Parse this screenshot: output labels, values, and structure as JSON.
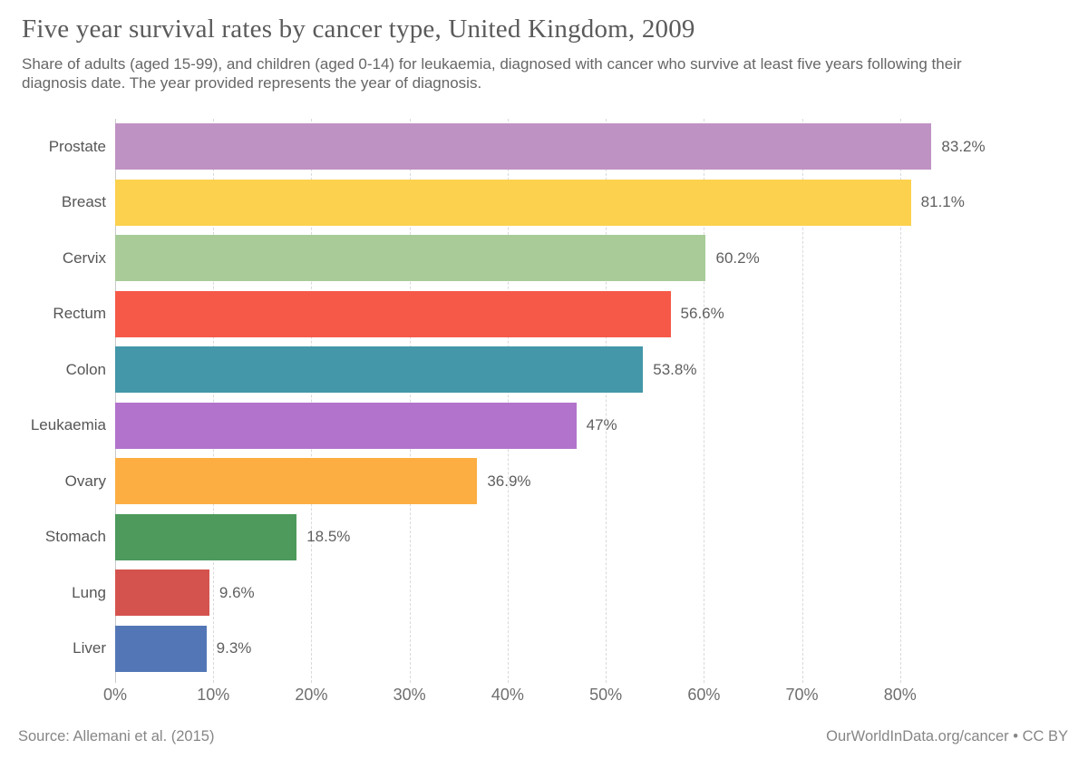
{
  "header": {
    "title": "Five year survival rates by cancer type, United Kingdom, 2009",
    "subtitle": "Share of adults (aged 15-99), and children (aged 0-14) for leukaemia, diagnosed with cancer who survive at least five years following their diagnosis date. The year provided represents the year of diagnosis."
  },
  "chart_data": {
    "type": "bar",
    "orientation": "horizontal",
    "title": "Five year survival rates by cancer type, United Kingdom, 2009",
    "categories": [
      "Prostate",
      "Breast",
      "Cervix",
      "Rectum",
      "Colon",
      "Leukaemia",
      "Ovary",
      "Stomach",
      "Lung",
      "Liver"
    ],
    "values": [
      83.2,
      81.1,
      60.2,
      56.6,
      53.8,
      47,
      36.9,
      18.5,
      9.6,
      9.3
    ],
    "value_labels": [
      "83.2%",
      "81.1%",
      "60.2%",
      "56.6%",
      "53.8%",
      "47%",
      "36.9%",
      "18.5%",
      "9.6%",
      "9.3%"
    ],
    "bar_colors": [
      "#bf92c4",
      "#fcd14e",
      "#a8cb98",
      "#f65948",
      "#4397a9",
      "#b273cc",
      "#fcae43",
      "#4d9a5c",
      "#d5534e",
      "#5377b6"
    ],
    "x_ticks": [
      "0%",
      "10%",
      "20%",
      "30%",
      "40%",
      "50%",
      "60%",
      "70%",
      "80%"
    ],
    "x_tick_values": [
      0,
      10,
      20,
      30,
      40,
      50,
      60,
      70,
      80
    ],
    "xlim": [
      0,
      90
    ],
    "xlabel": "",
    "ylabel": "",
    "grid": "vertical-dashed",
    "legend": "none"
  },
  "footer": {
    "source": "Source: Allemani et al. (2015)",
    "attribution": "OurWorldInData.org/cancer • CC BY"
  },
  "colors": {
    "grid": "#d9d9d9",
    "zero_line": "#c9c9c9",
    "title_text": "#5b5b5b",
    "subtitle_text": "#666666",
    "tick_text": "#6e6e6e",
    "category_text": "#565656",
    "value_text": "#5f5f5f",
    "footer_text": "#868686",
    "background": "#ffffff"
  }
}
